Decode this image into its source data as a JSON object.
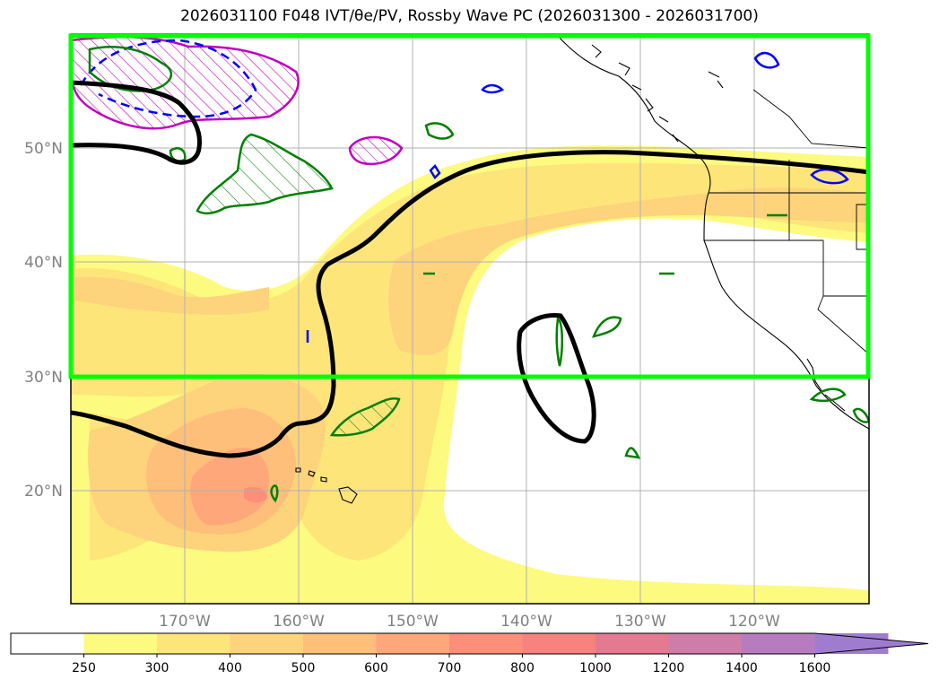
{
  "title": "2026031100 F048 IVT/θe/PV, Rossby Wave PC (2026031300 - 2026031700)",
  "map": {
    "lat_labels": [
      "50°N",
      "40°N",
      "30°N",
      "20°N"
    ],
    "lon_labels": [
      "170°W",
      "160°W",
      "150°W",
      "140°W",
      "130°W",
      "120°W"
    ]
  },
  "colorbar": {
    "ticks": [
      "250",
      "300",
      "400",
      "500",
      "600",
      "700",
      "800",
      "1000",
      "1200",
      "1400",
      "1600"
    ],
    "colors": [
      "#ffffff",
      "#fdfa80",
      "#fde57a",
      "#fdd37c",
      "#fdbf7a",
      "#fda77a",
      "#fd8e7a",
      "#f7827e",
      "#e37a90",
      "#cf7ca8",
      "#b77cc0",
      "#a07cd0"
    ]
  },
  "colors": {
    "region_box": "#00ff00",
    "pv_contour": "#000000",
    "theta_e_green": "#008000",
    "theta_e_blue": "#0000ff",
    "theta_e_magenta": "#c000c0"
  }
}
